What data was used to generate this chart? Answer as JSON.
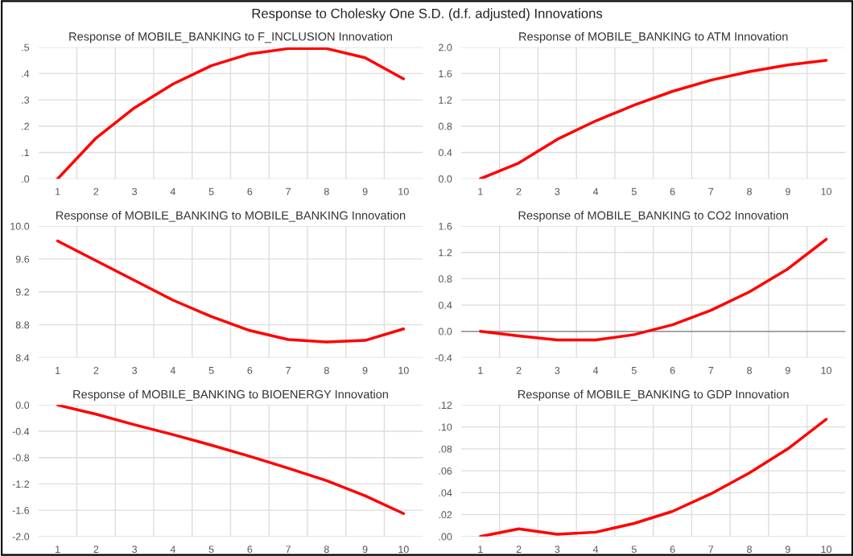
{
  "chart_data": [
    {
      "type": "line",
      "title": "Response of MOBILE_BANKING to F_INCLUSION Innovation",
      "annotations": [
        "Response to Cholesky One S.D. (d.f. adjusted) Innovations"
      ],
      "categories": [
        "1",
        "2",
        "3",
        "4",
        "5",
        "6",
        "7",
        "8",
        "9",
        "10"
      ],
      "series": [
        {
          "color": "#ff0000",
          "values": [
            0.0,
            0.155,
            0.27,
            0.36,
            0.43,
            0.475,
            0.495,
            0.495,
            0.46,
            0.38
          ]
        }
      ],
      "ylim": [
        0,
        0.5
      ],
      "yticks": [
        {
          "value": 0,
          "label": ".0"
        },
        {
          "value": 0.1,
          "label": ".1"
        },
        {
          "value": 0.2,
          "label": ".2"
        },
        {
          "value": 0.3,
          "label": ".3"
        },
        {
          "value": 0.4,
          "label": ".4"
        },
        {
          "value": 0.5,
          "label": ".5"
        }
      ],
      "grid": true
    },
    {
      "type": "line",
      "title": "Response of MOBILE_BANKING to ATM Innovation",
      "categories": [
        "1",
        "2",
        "3",
        "4",
        "5",
        "6",
        "7",
        "8",
        "9",
        "10"
      ],
      "series": [
        {
          "color": "#ff0000",
          "values": [
            0.0,
            0.24,
            0.6,
            0.88,
            1.12,
            1.33,
            1.5,
            1.63,
            1.73,
            1.8
          ]
        }
      ],
      "ylim": [
        0,
        2.0
      ],
      "yticks": [
        {
          "value": 0,
          "label": "0.0"
        },
        {
          "value": 0.4,
          "label": "0.4"
        },
        {
          "value": 0.8,
          "label": "0.8"
        },
        {
          "value": 1.2,
          "label": "1.2"
        },
        {
          "value": 1.6,
          "label": "1.6"
        },
        {
          "value": 2.0,
          "label": "2.0"
        }
      ],
      "grid": true
    },
    {
      "type": "line",
      "title": "Response of MOBILE_BANKING to MOBILE_BANKING Innovation",
      "categories": [
        "1",
        "2",
        "3",
        "4",
        "5",
        "6",
        "7",
        "8",
        "9",
        "10"
      ],
      "series": [
        {
          "color": "#ff0000",
          "values": [
            9.82,
            9.58,
            9.34,
            9.1,
            8.9,
            8.73,
            8.62,
            8.59,
            8.61,
            8.75
          ]
        }
      ],
      "ylim": [
        8.4,
        10.0
      ],
      "yticks": [
        {
          "value": 8.4,
          "label": "8.4"
        },
        {
          "value": 8.8,
          "label": "8.8"
        },
        {
          "value": 9.2,
          "label": "9.2"
        },
        {
          "value": 9.6,
          "label": "9.6"
        },
        {
          "value": 10.0,
          "label": "10.0"
        }
      ],
      "grid": true
    },
    {
      "type": "line",
      "title": "Response of MOBILE_BANKING to CO2 Innovation",
      "categories": [
        "1",
        "2",
        "3",
        "4",
        "5",
        "6",
        "7",
        "8",
        "9",
        "10"
      ],
      "series": [
        {
          "color": "#ff0000",
          "values": [
            0.0,
            -0.07,
            -0.13,
            -0.13,
            -0.05,
            0.1,
            0.32,
            0.6,
            0.95,
            1.4
          ]
        }
      ],
      "ylim": [
        -0.4,
        1.6
      ],
      "yticks": [
        {
          "value": -0.4,
          "label": "-0.4"
        },
        {
          "value": 0,
          "label": "0.0"
        },
        {
          "value": 0.4,
          "label": "0.4"
        },
        {
          "value": 0.8,
          "label": "0.8"
        },
        {
          "value": 1.2,
          "label": "1.2"
        },
        {
          "value": 1.6,
          "label": "1.6"
        }
      ],
      "grid": true,
      "ref_lines": [
        {
          "axis": "y",
          "value": 0,
          "color": "#9a9a9a"
        }
      ]
    },
    {
      "type": "line",
      "title": "Response of MOBILE_BANKING to BIOENERGY Innovation",
      "categories": [
        "1",
        "2",
        "3",
        "4",
        "5",
        "6",
        "7",
        "8",
        "9",
        "10"
      ],
      "series": [
        {
          "color": "#ff0000",
          "values": [
            0.0,
            -0.14,
            -0.3,
            -0.45,
            -0.61,
            -0.78,
            -0.96,
            -1.15,
            -1.38,
            -1.65
          ]
        }
      ],
      "ylim": [
        -2.0,
        0.0
      ],
      "yticks": [
        {
          "value": -2.0,
          "label": "-2.0"
        },
        {
          "value": -1.6,
          "label": "-1.6"
        },
        {
          "value": -1.2,
          "label": "-1.2"
        },
        {
          "value": -0.8,
          "label": "-0.8"
        },
        {
          "value": -0.4,
          "label": "-0.4"
        },
        {
          "value": 0,
          "label": "0.0"
        }
      ],
      "grid": true
    },
    {
      "type": "line",
      "title": "Response of MOBILE_BANKING to GDP Innovation",
      "categories": [
        "1",
        "2",
        "3",
        "4",
        "5",
        "6",
        "7",
        "8",
        "9",
        "10"
      ],
      "series": [
        {
          "color": "#ff0000",
          "values": [
            0.0,
            0.007,
            0.002,
            0.004,
            0.012,
            0.023,
            0.039,
            0.058,
            0.08,
            0.107
          ]
        }
      ],
      "ylim": [
        0,
        0.12
      ],
      "yticks": [
        {
          "value": 0,
          "label": ".00"
        },
        {
          "value": 0.02,
          "label": ".02"
        },
        {
          "value": 0.04,
          "label": ".04"
        },
        {
          "value": 0.06,
          "label": ".06"
        },
        {
          "value": 0.08,
          "label": ".08"
        },
        {
          "value": 0.1,
          "label": ".10"
        },
        {
          "value": 0.12,
          "label": ".12"
        }
      ],
      "grid": true
    }
  ]
}
